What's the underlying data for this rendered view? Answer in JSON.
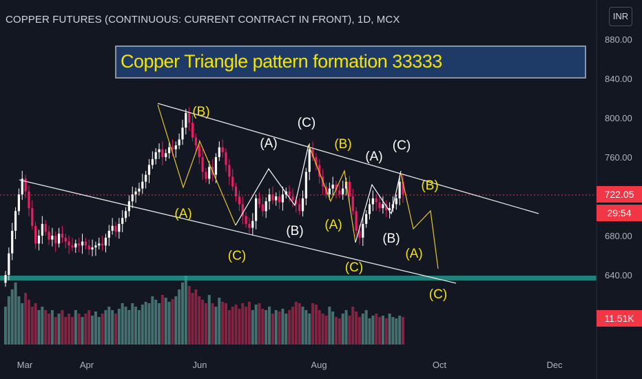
{
  "header": {
    "title": "COPPER FUTURES (CONTINUOUS: CURRENT CONTRACT IN FRONT), 1D, MCX",
    "currency": "INR"
  },
  "annotation": {
    "banner": "Copper Triangle pattern formation   33333"
  },
  "price_tags": {
    "last_price": "722.05",
    "countdown": "29:54",
    "volume": "11.51K"
  },
  "colors": {
    "background": "#131722",
    "bull": "#ffffff",
    "bear": "#e91e63",
    "support_band": "#26a69a",
    "wave_yellow": "#f5e400",
    "wave_white": "#ffffff",
    "price_tag": "#f23645"
  },
  "chart_data": {
    "type": "candlestick",
    "y_axis": {
      "ticks": [
        "880.00",
        "840.00",
        "800.00",
        "760.00",
        "720.00",
        "680.00",
        "640.00"
      ],
      "ylim": [
        600,
        900
      ]
    },
    "x_axis": {
      "ticks": [
        "Mar",
        "Apr",
        "Jun",
        "Aug",
        "Oct",
        "Dec"
      ]
    },
    "support_level": 638,
    "last_price": 722.05,
    "closes": [
      640,
      662,
      685,
      705,
      722,
      738,
      725,
      708,
      690,
      672,
      680,
      692,
      684,
      676,
      680,
      672,
      682,
      678,
      674,
      670,
      668,
      672,
      670,
      674,
      670,
      666,
      668,
      670,
      672,
      670,
      678,
      685,
      690,
      684,
      692,
      698,
      705,
      715,
      722,
      725,
      728,
      735,
      742,
      752,
      758,
      765,
      768,
      760,
      764,
      770,
      768,
      772,
      778,
      790,
      805,
      795,
      780,
      772,
      760,
      745,
      738,
      750,
      742,
      760,
      770,
      765,
      752,
      740,
      730,
      720,
      712,
      700,
      692,
      688,
      695,
      718,
      712,
      705,
      715,
      722,
      716,
      720,
      714,
      722,
      725,
      720,
      716,
      712,
      705,
      718,
      745,
      768,
      760,
      752,
      740,
      730,
      722,
      728,
      732,
      726,
      722,
      728,
      735,
      720,
      705,
      685,
      678,
      692,
      702,
      712,
      718,
      714,
      708,
      712,
      706,
      708,
      712,
      718,
      735,
      722
    ],
    "volumes": [
      0.55,
      0.7,
      0.8,
      0.9,
      0.7,
      0.6,
      0.75,
      0.65,
      0.55,
      0.6,
      0.5,
      0.55,
      0.5,
      0.45,
      0.5,
      0.4,
      0.45,
      0.5,
      0.4,
      0.45,
      0.4,
      0.5,
      0.45,
      0.4,
      0.45,
      0.5,
      0.42,
      0.48,
      0.4,
      0.45,
      0.5,
      0.55,
      0.5,
      0.45,
      0.52,
      0.6,
      0.55,
      0.5,
      0.6,
      0.55,
      0.5,
      0.58,
      0.62,
      0.6,
      0.7,
      0.65,
      0.6,
      0.72,
      0.68,
      0.62,
      0.66,
      0.7,
      0.8,
      0.9,
      1.0,
      0.85,
      0.75,
      0.8,
      0.7,
      0.65,
      0.6,
      0.72,
      0.6,
      0.55,
      0.68,
      0.62,
      0.6,
      0.5,
      0.55,
      0.58,
      0.52,
      0.6,
      0.55,
      0.62,
      0.5,
      0.58,
      0.6,
      0.52,
      0.5,
      0.55,
      0.45,
      0.5,
      0.48,
      0.52,
      0.45,
      0.5,
      0.55,
      0.62,
      0.6,
      0.55,
      0.5,
      0.45,
      0.6,
      0.58,
      0.5,
      0.45,
      0.42,
      0.55,
      0.48,
      0.4,
      0.38,
      0.45,
      0.5,
      0.42,
      0.55,
      0.48,
      0.4,
      0.45,
      0.5,
      0.38,
      0.42,
      0.45,
      0.4,
      0.42,
      0.38,
      0.45,
      0.4,
      0.38,
      0.42,
      0.4
    ],
    "trendlines": [
      {
        "from": [
          "May",
          814
        ],
        "to": [
          "Dec",
          728
        ]
      },
      {
        "from": [
          "Mar",
          738
        ],
        "to": [
          "Oct",
          633
        ]
      }
    ],
    "wave_labels": [
      "(B)",
      "(A)",
      "(C)",
      "(C)",
      "(A)",
      "(B)",
      "(B)",
      "(A)",
      "(C)",
      "(A)",
      "(C)",
      "(B)",
      "(B)",
      "(A)",
      "(C)"
    ]
  }
}
